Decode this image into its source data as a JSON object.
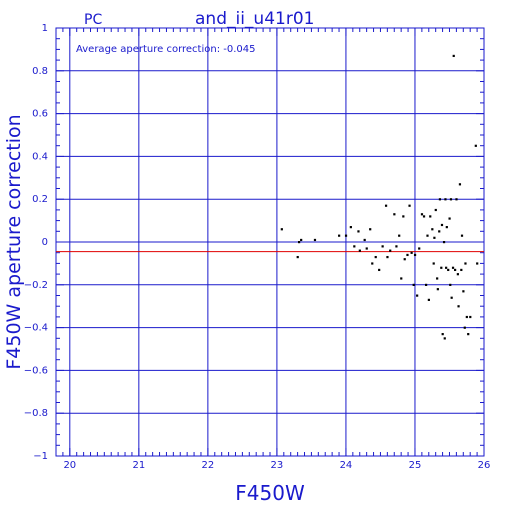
{
  "page": {
    "camera_label": "PC",
    "title": "and_ii_u41r01"
  },
  "chart_data": {
    "type": "scatter",
    "title": "and_ii_u41r01",
    "subtitle": "PC",
    "xlabel": "F450W",
    "ylabel": "F450W aperture correction",
    "annotation": "Average aperture correction: -0.045",
    "xlim": [
      19.8,
      26.0
    ],
    "ylim": [
      -1.0,
      1.0
    ],
    "x_ticks": [
      20,
      21,
      22,
      23,
      24,
      25,
      26
    ],
    "y_ticks": [
      -1,
      -0.8,
      -0.6,
      -0.4,
      -0.2,
      0,
      0.2,
      0.4,
      0.6,
      0.8,
      1
    ],
    "x_tick_labels": [
      "20",
      "21",
      "22",
      "23",
      "24",
      "25",
      "26"
    ],
    "y_tick_labels": [
      "−1",
      "−0.8",
      "−0.6",
      "−0.4",
      "−0.2",
      "0",
      "0.2",
      "0.4",
      "0.6",
      "0.8",
      "1"
    ],
    "grid": true,
    "average_line": -0.045,
    "colors": {
      "axes": "#1a1acc",
      "grid": "#1a1acc",
      "points": "#000000",
      "average_line": "#e00000",
      "text": "#1a1acc"
    },
    "points": [
      {
        "x": 23.07,
        "y": 0.06
      },
      {
        "x": 23.3,
        "y": -0.07
      },
      {
        "x": 23.32,
        "y": 0.0
      },
      {
        "x": 23.35,
        "y": 0.01
      },
      {
        "x": 23.55,
        "y": 0.01
      },
      {
        "x": 23.9,
        "y": 0.03
      },
      {
        "x": 24.0,
        "y": 0.03
      },
      {
        "x": 24.07,
        "y": 0.07
      },
      {
        "x": 24.12,
        "y": -0.02
      },
      {
        "x": 24.18,
        "y": 0.05
      },
      {
        "x": 24.2,
        "y": -0.04
      },
      {
        "x": 24.27,
        "y": 0.01
      },
      {
        "x": 24.3,
        "y": -0.03
      },
      {
        "x": 24.35,
        "y": 0.06
      },
      {
        "x": 24.38,
        "y": -0.1
      },
      {
        "x": 24.43,
        "y": -0.07
      },
      {
        "x": 24.48,
        "y": -0.13
      },
      {
        "x": 24.53,
        "y": -0.02
      },
      {
        "x": 24.58,
        "y": 0.17
      },
      {
        "x": 24.6,
        "y": -0.07
      },
      {
        "x": 24.64,
        "y": -0.04
      },
      {
        "x": 24.7,
        "y": 0.13
      },
      {
        "x": 24.73,
        "y": -0.02
      },
      {
        "x": 24.77,
        "y": 0.03
      },
      {
        "x": 24.8,
        "y": -0.17
      },
      {
        "x": 24.83,
        "y": 0.12
      },
      {
        "x": 24.85,
        "y": -0.08
      },
      {
        "x": 24.89,
        "y": -0.06
      },
      {
        "x": 24.92,
        "y": 0.17
      },
      {
        "x": 24.95,
        "y": -0.05
      },
      {
        "x": 24.98,
        "y": -0.2
      },
      {
        "x": 25.0,
        "y": -0.06
      },
      {
        "x": 25.03,
        "y": -0.25
      },
      {
        "x": 25.06,
        "y": -0.03
      },
      {
        "x": 25.1,
        "y": 0.13
      },
      {
        "x": 25.13,
        "y": 0.12
      },
      {
        "x": 25.16,
        "y": -0.2
      },
      {
        "x": 25.18,
        "y": 0.03
      },
      {
        "x": 25.2,
        "y": -0.27
      },
      {
        "x": 25.22,
        "y": 0.12
      },
      {
        "x": 25.25,
        "y": 0.06
      },
      {
        "x": 25.27,
        "y": -0.1
      },
      {
        "x": 25.28,
        "y": 0.02
      },
      {
        "x": 25.3,
        "y": 0.15
      },
      {
        "x": 25.32,
        "y": -0.17
      },
      {
        "x": 25.33,
        "y": -0.22
      },
      {
        "x": 25.35,
        "y": 0.05
      },
      {
        "x": 25.36,
        "y": 0.2
      },
      {
        "x": 25.38,
        "y": -0.12
      },
      {
        "x": 25.39,
        "y": 0.08
      },
      {
        "x": 25.4,
        "y": -0.43
      },
      {
        "x": 25.42,
        "y": 0.0
      },
      {
        "x": 25.43,
        "y": -0.45
      },
      {
        "x": 25.44,
        "y": 0.2
      },
      {
        "x": 25.45,
        "y": -0.12
      },
      {
        "x": 25.46,
        "y": 0.07
      },
      {
        "x": 25.48,
        "y": -0.13
      },
      {
        "x": 25.5,
        "y": 0.11
      },
      {
        "x": 25.51,
        "y": -0.2
      },
      {
        "x": 25.52,
        "y": 0.2
      },
      {
        "x": 25.53,
        "y": -0.26
      },
      {
        "x": 25.55,
        "y": -0.12
      },
      {
        "x": 25.56,
        "y": 0.87
      },
      {
        "x": 25.58,
        "y": -0.13
      },
      {
        "x": 25.6,
        "y": 0.2
      },
      {
        "x": 25.62,
        "y": -0.15
      },
      {
        "x": 25.63,
        "y": -0.3
      },
      {
        "x": 25.65,
        "y": 0.27
      },
      {
        "x": 25.67,
        "y": -0.13
      },
      {
        "x": 25.68,
        "y": 0.03
      },
      {
        "x": 25.7,
        "y": -0.23
      },
      {
        "x": 25.72,
        "y": -0.4
      },
      {
        "x": 25.73,
        "y": -0.1
      },
      {
        "x": 25.75,
        "y": -0.35
      },
      {
        "x": 25.77,
        "y": -0.43
      },
      {
        "x": 25.8,
        "y": -0.35
      },
      {
        "x": 25.88,
        "y": 0.45
      },
      {
        "x": 25.9,
        "y": -0.1
      }
    ]
  }
}
